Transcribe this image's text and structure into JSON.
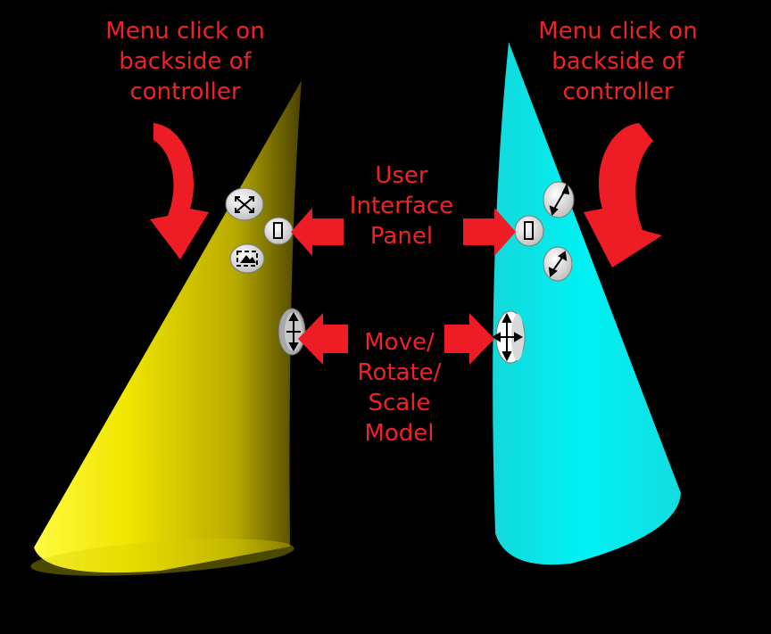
{
  "colors": {
    "background": "#000000",
    "label": "#ef2229",
    "arrow": "#ee1c25",
    "left_cone": "#f2ec00",
    "right_cone": "#00e6e8",
    "button_face": "#eeeeee"
  },
  "labels": {
    "menu_left": "Menu click on\nbackside of\ncontroller",
    "menu_right": "Menu click on\nbackside of\ncontroller",
    "ui_panel": "User\nInterface\nPanel",
    "move": "Move/\nRotate/\nScale\nModel"
  },
  "controllers": {
    "left": {
      "name": "left-controller",
      "buttons": [
        "move-arrows-icon",
        "panel-icon",
        "image-icon",
        "move-rotate-scale-icon"
      ]
    },
    "right": {
      "name": "right-controller",
      "buttons": [
        "expand-icon",
        "panel-icon",
        "shrink-icon",
        "move-rotate-scale-icon"
      ]
    }
  }
}
